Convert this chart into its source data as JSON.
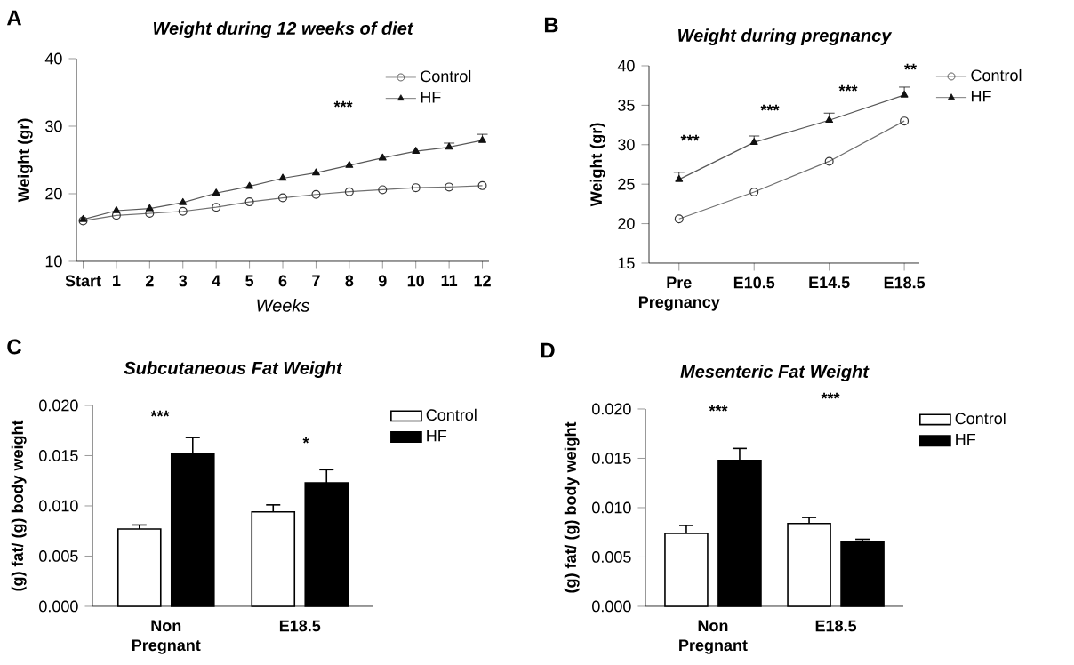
{
  "chart_data": [
    {
      "type": "line",
      "title": "Weight during 12 weeks of diet",
      "xlabel": "Weeks",
      "ylabel": "Weight (gr)",
      "categories": [
        "Start",
        "1",
        "2",
        "3",
        "4",
        "5",
        "6",
        "7",
        "8",
        "9",
        "10",
        "11",
        "12"
      ],
      "series": [
        {
          "name": "Control",
          "color": "#333333",
          "marker": "circle",
          "values": [
            16.0,
            16.8,
            17.1,
            17.4,
            18.0,
            18.8,
            19.4,
            19.9,
            20.3,
            20.6,
            20.9,
            21.0,
            21.2
          ]
        },
        {
          "name": "HF",
          "color": "#111111",
          "marker": "triangle",
          "values": [
            16.2,
            17.5,
            17.8,
            18.7,
            20.1,
            21.1,
            22.3,
            23.1,
            24.2,
            25.3,
            26.3,
            26.9,
            27.9
          ],
          "errors": [
            null,
            null,
            null,
            null,
            null,
            null,
            null,
            null,
            null,
            null,
            null,
            0.6,
            0.9
          ]
        }
      ],
      "ylim": [
        10,
        40
      ],
      "yticks": [
        10,
        20,
        30,
        40
      ],
      "legend": "top right",
      "annotations": [
        "A",
        "***"
      ]
    },
    {
      "type": "line",
      "title": "Weight during pregnancy",
      "ylabel": "Weight (gr)",
      "categories": [
        "Pre Pregnancy",
        "E10.5",
        "E14.5",
        "E18.5"
      ],
      "series": [
        {
          "name": "Control",
          "color": "#333333",
          "marker": "circle",
          "values": [
            20.6,
            24.0,
            27.9,
            33.0
          ]
        },
        {
          "name": "HF",
          "color": "#111111",
          "marker": "triangle",
          "values": [
            25.6,
            30.3,
            33.1,
            36.3
          ],
          "errors": [
            0.9,
            0.8,
            0.9,
            1.0
          ]
        }
      ],
      "ylim": [
        15,
        40
      ],
      "yticks": [
        15,
        20,
        25,
        30,
        35,
        40
      ],
      "legend": "right",
      "annotations": [
        "B",
        "***",
        "***",
        "***",
        "**"
      ]
    },
    {
      "type": "bar",
      "title": "Subcutaneous Fat Weight",
      "ylabel": "(g) fat/ (g) body weight",
      "categories": [
        "Non Pregnant",
        "E18.5"
      ],
      "series": [
        {
          "name": "Control",
          "color": "#ffffff",
          "values": [
            0.0077,
            0.0094
          ],
          "errors": [
            0.0004,
            0.0007
          ]
        },
        {
          "name": "HF",
          "color": "#000000",
          "values": [
            0.0152,
            0.0123
          ],
          "errors": [
            0.0016,
            0.0013
          ]
        }
      ],
      "ylim": [
        0,
        0.02
      ],
      "yticks": [
        {
          "value": 0,
          "label": "0.000"
        },
        {
          "value": 0.005,
          "label": "0.005"
        },
        {
          "value": 0.01,
          "label": "0.010"
        },
        {
          "value": 0.015,
          "label": "0.015"
        },
        {
          "value": 0.02,
          "label": "0.020"
        }
      ],
      "legend": "right",
      "annotations": [
        "C",
        "***",
        "*"
      ]
    },
    {
      "type": "bar",
      "title": "Mesenteric Fat Weight",
      "ylabel": "(g) fat/ (g) body weight",
      "categories": [
        "Non Pregnant",
        "E18.5"
      ],
      "series": [
        {
          "name": "Control",
          "color": "#ffffff",
          "values": [
            0.0074,
            0.0084
          ],
          "errors": [
            0.0008,
            0.0006
          ]
        },
        {
          "name": "HF",
          "color": "#000000",
          "values": [
            0.0148,
            0.0066
          ],
          "errors": [
            0.0012,
            0.0002
          ]
        }
      ],
      "ylim": [
        0,
        0.02
      ],
      "yticks": [
        {
          "value": 0,
          "label": "0.000"
        },
        {
          "value": 0.005,
          "label": "0.005"
        },
        {
          "value": 0.01,
          "label": "0.010"
        },
        {
          "value": 0.015,
          "label": "0.015"
        },
        {
          "value": 0.02,
          "label": "0.020"
        }
      ],
      "legend": "right",
      "annotations": [
        "D",
        "***",
        "***"
      ]
    }
  ]
}
